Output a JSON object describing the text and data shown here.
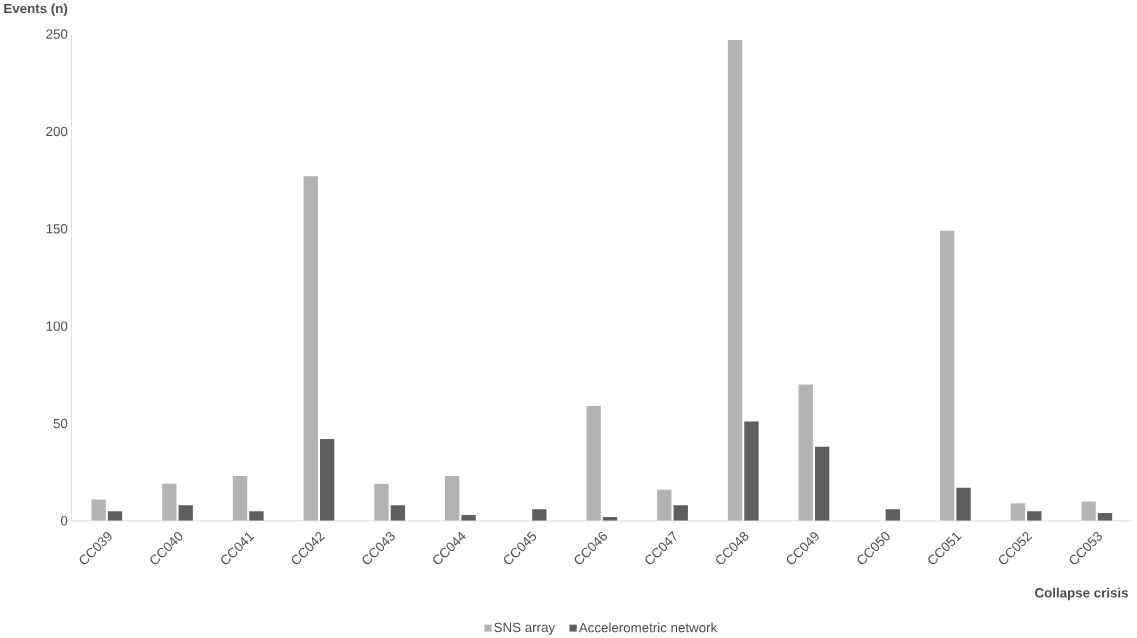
{
  "chart_data": {
    "type": "bar",
    "ylabel": "Events (n)",
    "xlabel": "Collapse crisis",
    "categories": [
      "CC039",
      "CC040",
      "CC041",
      "CC042",
      "CC043",
      "CC044",
      "CC045",
      "CC046",
      "CC047",
      "CC048",
      "CC049",
      "CC050",
      "CC051",
      "CC052",
      "CC053"
    ],
    "series": [
      {
        "name": "SNS array",
        "color": "#b3b3b3",
        "values": [
          11,
          19,
          23,
          177,
          19,
          23,
          0,
          59,
          16,
          247,
          70,
          0,
          149,
          9,
          10
        ]
      },
      {
        "name": "Accelerometric network",
        "color": "#5f5f5f",
        "values": [
          5,
          8,
          5,
          42,
          8,
          3,
          6,
          2,
          8,
          51,
          38,
          6,
          17,
          5,
          4
        ]
      }
    ],
    "ylim": [
      0,
      250
    ],
    "yticks": [
      0,
      50,
      100,
      150,
      200,
      250
    ],
    "grid": false,
    "legend": "bottom"
  }
}
